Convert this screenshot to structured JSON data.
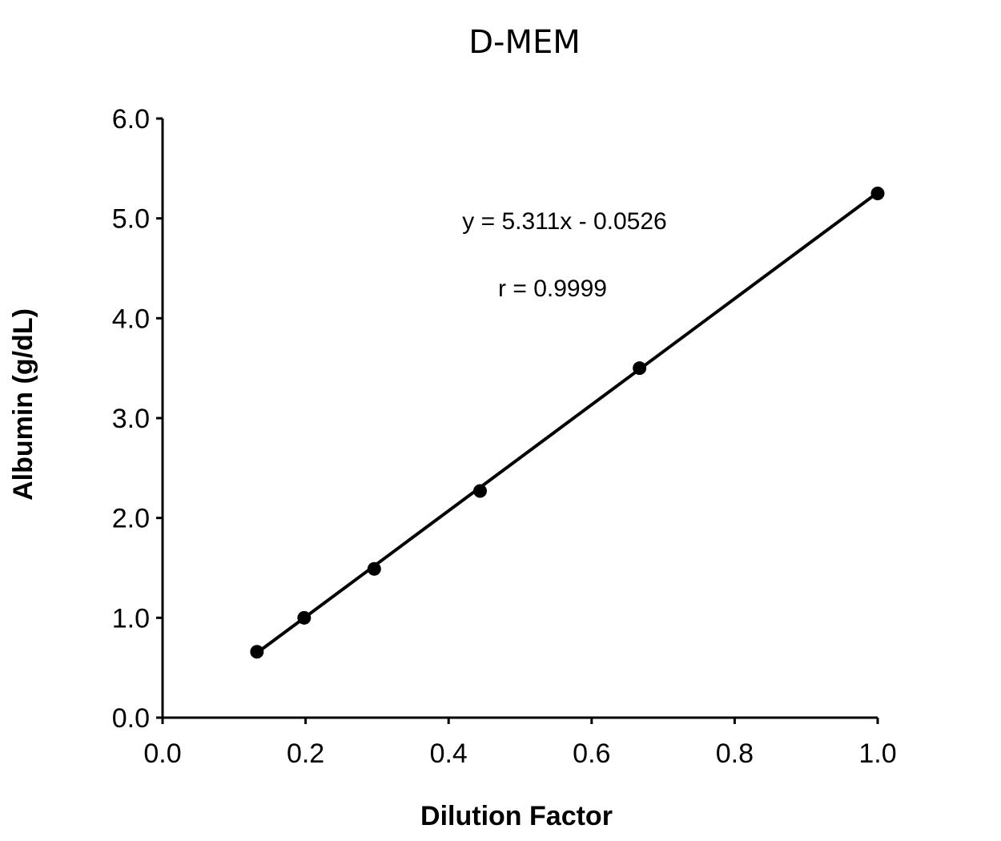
{
  "chart_data": {
    "type": "scatter",
    "title": "D-MEM",
    "xlabel": "Dilution Factor",
    "ylabel": "Albumin (g/dL)",
    "xlim": [
      0.0,
      1.0
    ],
    "ylim": [
      0.0,
      6.0
    ],
    "x_ticks": [
      "0.0",
      "0.2",
      "0.4",
      "0.6",
      "0.8",
      "1.0"
    ],
    "y_ticks": [
      "0.0",
      "1.0",
      "2.0",
      "3.0",
      "4.0",
      "5.0",
      "6.0"
    ],
    "grid": false,
    "legend": "none",
    "series": [
      {
        "x": [
          0.132,
          0.198,
          0.296,
          0.444,
          0.667,
          1.0
        ],
        "y": [
          0.66,
          1.0,
          1.49,
          2.27,
          3.5,
          5.25
        ]
      }
    ],
    "trendline": {
      "slope": 5.311,
      "intercept": -0.0526,
      "x_range": [
        0.132,
        1.0
      ]
    },
    "annotations": {
      "equation": "y = 5.311x - 0.0526",
      "r_value": "r = 0.9999"
    },
    "colors": {
      "marker": "#000000",
      "line": "#000000",
      "axis": "#000000"
    }
  }
}
